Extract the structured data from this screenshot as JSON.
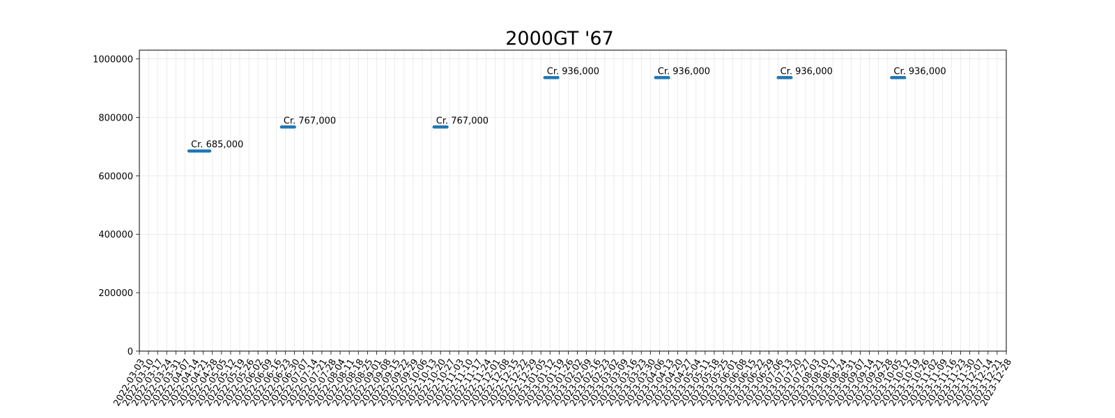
{
  "chart_data": {
    "type": "line",
    "title": "2000GT '67",
    "xlabel": "",
    "ylabel": "",
    "x_ticks": [
      "2022-03-03",
      "2022-03-10",
      "2022-03-17",
      "2022-03-24",
      "2022-03-31",
      "2022-04-07",
      "2022-04-14",
      "2022-04-21",
      "2022-04-28",
      "2022-05-05",
      "2022-05-12",
      "2022-05-19",
      "2022-05-26",
      "2022-06-02",
      "2022-06-09",
      "2022-06-16",
      "2022-06-23",
      "2022-06-30",
      "2022-07-07",
      "2022-07-14",
      "2022-07-21",
      "2022-07-28",
      "2022-08-04",
      "2022-08-11",
      "2022-08-18",
      "2022-08-25",
      "2022-09-01",
      "2022-09-08",
      "2022-09-15",
      "2022-09-22",
      "2022-09-29",
      "2022-10-06",
      "2022-10-13",
      "2022-10-20",
      "2022-10-27",
      "2022-11-03",
      "2022-11-10",
      "2022-11-17",
      "2022-11-24",
      "2022-12-01",
      "2022-12-08",
      "2022-12-15",
      "2022-12-22",
      "2022-12-29",
      "2023-01-05",
      "2023-01-12",
      "2023-01-19",
      "2023-01-26",
      "2023-02-02",
      "2023-02-09",
      "2023-02-16",
      "2023-02-23",
      "2023-03-02",
      "2023-03-09",
      "2023-03-16",
      "2023-03-23",
      "2023-03-30",
      "2023-04-06",
      "2023-04-13",
      "2023-04-20",
      "2023-04-27",
      "2023-05-04",
      "2023-05-11",
      "2023-05-18",
      "2023-05-25",
      "2023-06-01",
      "2023-06-08",
      "2023-06-15",
      "2023-06-22",
      "2023-06-29",
      "2023-07-06",
      "2023-07-13",
      "2023-07-20",
      "2023-07-27",
      "2023-08-03",
      "2023-08-10",
      "2023-08-17",
      "2023-08-24",
      "2023-08-31",
      "2023-09-07",
      "2023-09-14",
      "2023-09-21",
      "2023-09-28",
      "2023-10-05",
      "2023-10-12",
      "2023-10-19",
      "2023-10-26",
      "2023-11-02",
      "2023-11-09",
      "2023-11-16",
      "2023-11-23",
      "2023-11-30",
      "2023-12-07",
      "2023-12-14",
      "2023-12-21",
      "2023-12-28"
    ],
    "x_range": [
      "2022-03-03",
      "2023-12-28"
    ],
    "y_ticks": [
      0,
      200000,
      400000,
      600000,
      800000,
      1000000
    ],
    "ylim": [
      0,
      1030000
    ],
    "grid": true,
    "series": [
      {
        "color": "#1f77b4",
        "segments": [
          {
            "x_start": "2022-04-10",
            "x_end": "2022-04-26",
            "y": 685000,
            "label": "Cr. 685,000"
          },
          {
            "x_start": "2022-06-20",
            "x_end": "2022-06-30",
            "y": 767000,
            "label": "Cr. 767,000"
          },
          {
            "x_start": "2022-10-15",
            "x_end": "2022-10-25",
            "y": 767000,
            "label": "Cr. 767,000"
          },
          {
            "x_start": "2023-01-08",
            "x_end": "2023-01-18",
            "y": 936000,
            "label": "Cr. 936,000"
          },
          {
            "x_start": "2023-04-03",
            "x_end": "2023-04-13",
            "y": 936000,
            "label": "Cr. 936,000"
          },
          {
            "x_start": "2023-07-06",
            "x_end": "2023-07-16",
            "y": 936000,
            "label": "Cr. 936,000"
          },
          {
            "x_start": "2023-10-01",
            "x_end": "2023-10-11",
            "y": 936000,
            "label": "Cr. 936,000"
          }
        ]
      }
    ]
  }
}
